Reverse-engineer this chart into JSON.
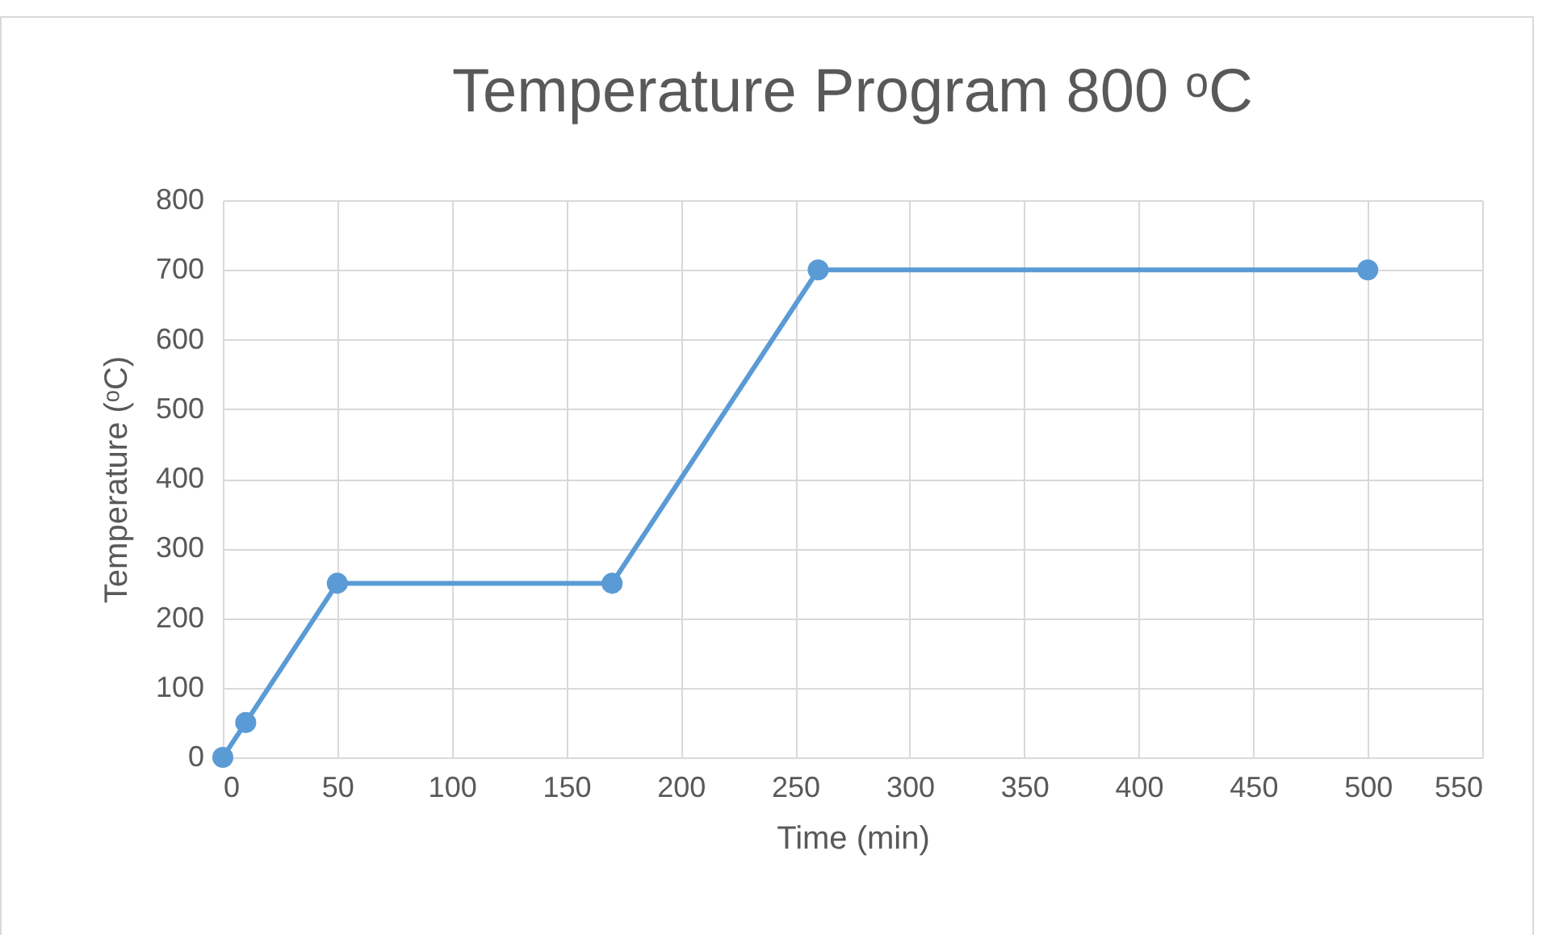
{
  "chart_data": {
    "type": "line",
    "title": "Temperature Program 800 ᵒC",
    "xlabel": "Time (min)",
    "ylabel": "Temperature (ᵒC)",
    "x": [
      0,
      10,
      50,
      170,
      260,
      500
    ],
    "series": [
      {
        "color": "#5b9bd5",
        "values": [
          0,
          50,
          250,
          250,
          700,
          700
        ]
      }
    ],
    "xlim": [
      0,
      550
    ],
    "xticks": [
      0,
      50,
      100,
      150,
      200,
      250,
      300,
      350,
      400,
      450,
      500,
      550
    ],
    "ylim": [
      0,
      800
    ],
    "yticks": [
      0,
      100,
      200,
      300,
      400,
      500,
      600,
      700,
      800
    ],
    "grid": true,
    "marker": "circle",
    "line_style": "solid"
  }
}
